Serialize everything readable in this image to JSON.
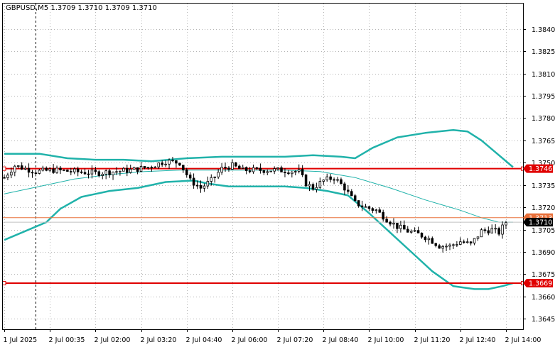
{
  "chart_data": {
    "type": "candlestick",
    "title": "GBPUSD,M5  1.3709 1.3710 1.3709 1.3710",
    "symbol": "GBPUSD",
    "timeframe": "M5",
    "ylim": [
      1.3638,
      1.3857
    ],
    "y_ticks": [
      "1.3840",
      "1.3825",
      "1.3810",
      "1.3795",
      "1.3780",
      "1.3765",
      "1.3750",
      "1.3735",
      "1.3720",
      "1.3705",
      "1.3690",
      "1.3675",
      "1.3660",
      "1.3645"
    ],
    "x_range": [
      0,
      143
    ],
    "x_ticks": [
      {
        "label": "1 Jul 2025",
        "bar": 0
      },
      {
        "label": "2 Jul 00:35",
        "bar": 13
      },
      {
        "label": "2 Jul 02:00",
        "bar": 26
      },
      {
        "label": "2 Jul 03:20",
        "bar": 39
      },
      {
        "label": "2 Jul 04:40",
        "bar": 52
      },
      {
        "label": "2 Jul 06:00",
        "bar": 65
      },
      {
        "label": "2 Jul 07:20",
        "bar": 78
      },
      {
        "label": "2 Jul 08:40",
        "bar": 91
      },
      {
        "label": "2 Jul 10:00",
        "bar": 104
      },
      {
        "label": "2 Jul 11:20",
        "bar": 117
      },
      {
        "label": "2 Jul 12:40",
        "bar": 130
      },
      {
        "label": "2 Jul 14:00",
        "bar": 143
      }
    ],
    "day_separator_bar": 9,
    "close_path": [
      [
        0,
        1.374
      ],
      [
        3,
        1.3748
      ],
      [
        6,
        1.3746
      ],
      [
        9,
        1.3744
      ],
      [
        14,
        1.3745
      ],
      [
        20,
        1.3744
      ],
      [
        26,
        1.3743
      ],
      [
        31,
        1.3744
      ],
      [
        36,
        1.3745
      ],
      [
        41,
        1.3747
      ],
      [
        46,
        1.3751
      ],
      [
        50,
        1.375
      ],
      [
        53,
        1.3738
      ],
      [
        56,
        1.3733
      ],
      [
        59,
        1.3738
      ],
      [
        62,
        1.3746
      ],
      [
        65,
        1.3748
      ],
      [
        68,
        1.3745
      ],
      [
        72,
        1.3745
      ],
      [
        78,
        1.3745
      ],
      [
        84,
        1.3744
      ],
      [
        86,
        1.3736
      ],
      [
        88,
        1.3733
      ],
      [
        91,
        1.3738
      ],
      [
        94,
        1.374
      ],
      [
        97,
        1.3733
      ],
      [
        100,
        1.3723
      ],
      [
        103,
        1.372
      ],
      [
        106,
        1.3718
      ],
      [
        109,
        1.3712
      ],
      [
        112,
        1.3707
      ],
      [
        115,
        1.3704
      ],
      [
        118,
        1.3702
      ],
      [
        121,
        1.3699
      ],
      [
        124,
        1.3694
      ],
      [
        127,
        1.3694
      ],
      [
        130,
        1.3697
      ],
      [
        133,
        1.3695
      ],
      [
        136,
        1.3704
      ],
      [
        139,
        1.3705
      ],
      [
        141,
        1.3703
      ],
      [
        143,
        1.371
      ]
    ],
    "series": [
      {
        "name": "",
        "color": "#20b2aa",
        "width": 2.5,
        "points": [
          [
            0,
            1.3756
          ],
          [
            10,
            1.3756
          ],
          [
            18,
            1.3753
          ],
          [
            26,
            1.3752
          ],
          [
            34,
            1.3752
          ],
          [
            42,
            1.3751
          ],
          [
            52,
            1.3753
          ],
          [
            62,
            1.3754
          ],
          [
            72,
            1.3754
          ],
          [
            80,
            1.3754
          ],
          [
            88,
            1.3755
          ],
          [
            96,
            1.3754
          ],
          [
            100,
            1.3753
          ],
          [
            105,
            1.376
          ],
          [
            112,
            1.3767
          ],
          [
            120,
            1.377
          ],
          [
            128,
            1.3772
          ],
          [
            132,
            1.3771
          ],
          [
            136,
            1.3765
          ],
          [
            140,
            1.3757
          ],
          [
            145,
            1.3747
          ]
        ]
      },
      {
        "name": "",
        "color": "#20b2aa",
        "width": 1,
        "points": [
          [
            0,
            1.3729
          ],
          [
            10,
            1.3734
          ],
          [
            20,
            1.3739
          ],
          [
            30,
            1.3742
          ],
          [
            40,
            1.3744
          ],
          [
            50,
            1.3745
          ],
          [
            60,
            1.3745
          ],
          [
            70,
            1.3745
          ],
          [
            80,
            1.3745
          ],
          [
            90,
            1.3744
          ],
          [
            100,
            1.374
          ],
          [
            110,
            1.3733
          ],
          [
            120,
            1.3725
          ],
          [
            130,
            1.3718
          ],
          [
            136,
            1.3713
          ],
          [
            141,
            1.371
          ],
          [
            145,
            1.371
          ]
        ]
      },
      {
        "name": "",
        "color": "#20b2aa",
        "width": 2.5,
        "points": [
          [
            0,
            1.3698
          ],
          [
            6,
            1.3704
          ],
          [
            12,
            1.371
          ],
          [
            16,
            1.3719
          ],
          [
            22,
            1.3727
          ],
          [
            30,
            1.3731
          ],
          [
            38,
            1.3733
          ],
          [
            46,
            1.3737
          ],
          [
            54,
            1.3738
          ],
          [
            58,
            1.3736
          ],
          [
            64,
            1.3734
          ],
          [
            72,
            1.3734
          ],
          [
            80,
            1.3734
          ],
          [
            86,
            1.3733
          ],
          [
            92,
            1.3731
          ],
          [
            98,
            1.3728
          ],
          [
            104,
            1.3716
          ],
          [
            110,
            1.3703
          ],
          [
            116,
            1.369
          ],
          [
            122,
            1.3677
          ],
          [
            128,
            1.3667
          ],
          [
            134,
            1.3665
          ],
          [
            138,
            1.3665
          ],
          [
            142,
            1.3667
          ],
          [
            145,
            1.3669
          ]
        ]
      }
    ],
    "levels": [
      {
        "value": 1.3746,
        "label": "1.3746",
        "color": "#e00000",
        "width": 2
      },
      {
        "value": 1.3713,
        "label": "1.3713",
        "color": "#e8703a",
        "width": 1
      },
      {
        "value": 1.3669,
        "label": "1.3669",
        "color": "#e00000",
        "width": 2
      },
      {
        "value": 1.371,
        "label": "1.3710",
        "color": "#c0c0c0",
        "width": 1,
        "tag_bg": "#000000",
        "tag_fg": "#ffffff"
      }
    ]
  }
}
